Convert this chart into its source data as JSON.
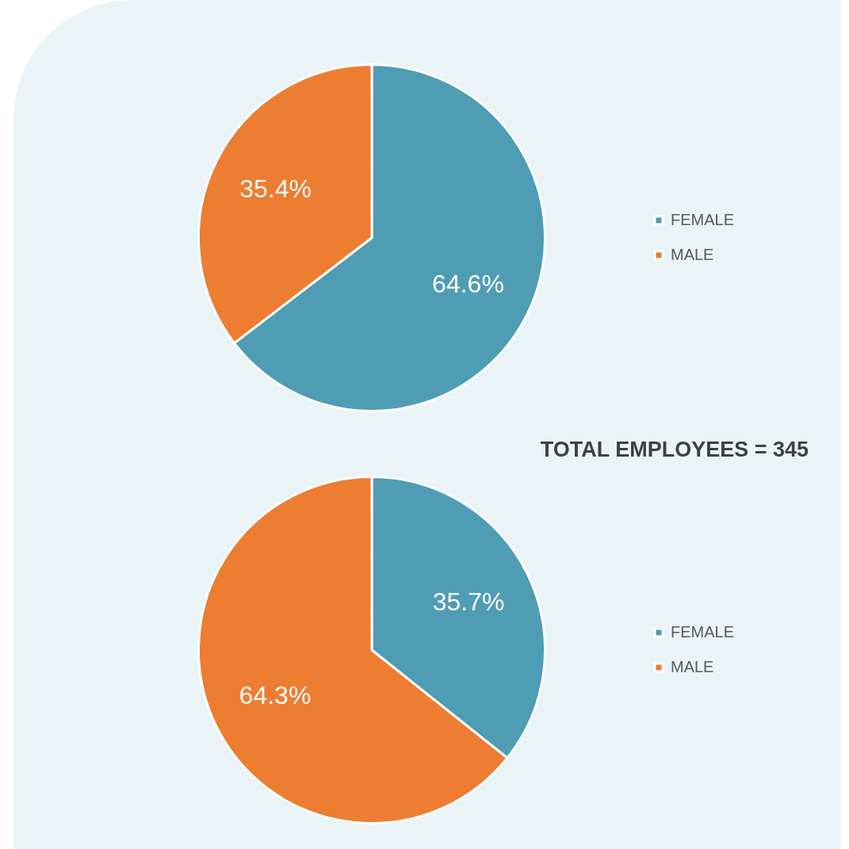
{
  "chart_data": [
    {
      "type": "pie",
      "categories": [
        "FEMALE",
        "MALE"
      ],
      "values": [
        64.6,
        35.4
      ],
      "colors": [
        "#4f9db4",
        "#ed7d31"
      ],
      "value_labels": [
        "64.6%",
        "35.4%"
      ],
      "legend": "right"
    },
    {
      "type": "pie",
      "title": "TOTAL EMPLOYEES = 345",
      "categories": [
        "FEMALE",
        "MALE"
      ],
      "values": [
        35.7,
        64.3
      ],
      "colors": [
        "#4f9db4",
        "#ed7d31"
      ],
      "value_labels": [
        "35.7%",
        "64.3%"
      ],
      "legend": "right"
    }
  ]
}
